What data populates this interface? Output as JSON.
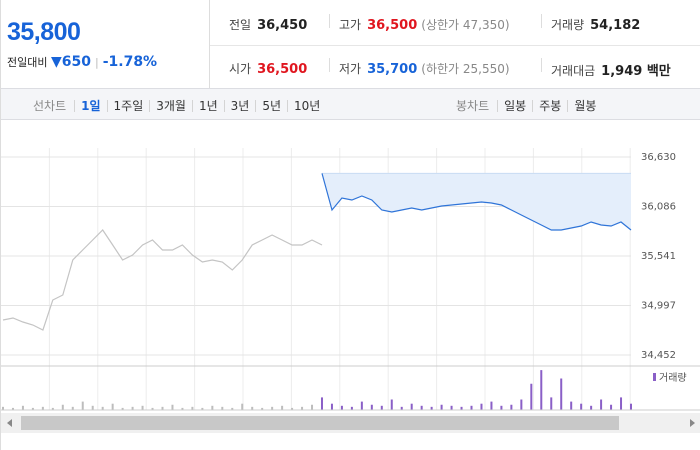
{
  "header": {
    "price": "35,800",
    "change_label": "전일대비",
    "change": "▼650",
    "change_pct": "-1.78%",
    "stats": [
      {
        "label": "전일",
        "value": "36,450",
        "color": "#222222"
      },
      {
        "label": "고가",
        "value": "36,500",
        "note": "(상한가 47,350)",
        "color": "#e0161f"
      },
      {
        "label": "거래량",
        "value": "54,182",
        "color": "#222222"
      },
      {
        "label": "시가",
        "value": "36,500",
        "color": "#e0161f"
      },
      {
        "label": "저가",
        "value": "35,700",
        "note": "(하한가 25,550)",
        "color": "#1763d8"
      },
      {
        "label": "거래대금",
        "value": "1,949 백만",
        "color": "#222222"
      }
    ]
  },
  "line_tabs": {
    "label": "선차트",
    "items": [
      "1일",
      "1주일",
      "3개월",
      "1년",
      "3년",
      "5년",
      "10년"
    ],
    "active": 0
  },
  "candle_tabs": {
    "label": "봉차트",
    "items": [
      "일봉",
      "주봉",
      "월봉"
    ]
  },
  "chart_data": [
    {
      "type": "line",
      "ylim": [
        34452,
        36630
      ],
      "yticks": [
        {
          "value": 36630,
          "label": "36,630"
        },
        {
          "value": 36086,
          "label": "36,086"
        },
        {
          "value": 35541,
          "label": "35,541"
        },
        {
          "value": 34997,
          "label": "34,997"
        },
        {
          "value": 34452,
          "label": "34,452"
        }
      ],
      "grid": true,
      "series": [
        {
          "color": "#c4c4c4",
          "values": [
            34837,
            34859,
            34815,
            34782,
            34727,
            35057,
            35112,
            35497,
            35607,
            35717,
            35827,
            35662,
            35497,
            35552,
            35662,
            35717,
            35607,
            35607,
            35662,
            35552,
            35475,
            35497,
            35475,
            35387,
            35497,
            35662,
            35717,
            35772,
            35717,
            35662,
            35662,
            35717,
            35662,
            null,
            null,
            null,
            null,
            null,
            null,
            null,
            null,
            null,
            null,
            null,
            null,
            null,
            null,
            null,
            null,
            null,
            null,
            null,
            null,
            null,
            null,
            null,
            null,
            null,
            null,
            null,
            null,
            null,
            null,
            null
          ]
        },
        {
          "color": "#2f74d8",
          "fill": "#e4eefb",
          "values": [
            null,
            null,
            null,
            null,
            null,
            null,
            null,
            null,
            null,
            null,
            null,
            null,
            null,
            null,
            null,
            null,
            null,
            null,
            null,
            null,
            null,
            null,
            null,
            null,
            null,
            null,
            null,
            null,
            null,
            null,
            null,
            null,
            36450,
            36047,
            36179,
            36157,
            36201,
            36157,
            36047,
            36025,
            36047,
            36069,
            36047,
            36069,
            36091,
            36102,
            36113,
            36124,
            36135,
            36124,
            36102,
            36047,
            35992,
            35937,
            35882,
            35827,
            35827,
            35849,
            35871,
            35915,
            35882,
            35871,
            35915,
            35827
          ]
        }
      ]
    },
    {
      "type": "bar",
      "ylim": [
        0,
        40
      ],
      "legend": "top-right",
      "series": [
        {
          "color": "#bdbdbd",
          "values": [
            3,
            2,
            4,
            2,
            3,
            2,
            5,
            3,
            8,
            4,
            3,
            6,
            2,
            3,
            4,
            2,
            3,
            5,
            2,
            3,
            2,
            4,
            3,
            2,
            6,
            3,
            2,
            3,
            4,
            2,
            3,
            5,
            null,
            null,
            null,
            null,
            null,
            null,
            null,
            null,
            null,
            null,
            null,
            null,
            null,
            null,
            null,
            null,
            null,
            null,
            null,
            null,
            null,
            null,
            null,
            null,
            null,
            null,
            null,
            null,
            null,
            null,
            null,
            null
          ]
        },
        {
          "name": "거래량",
          "color": "#8a5fc7",
          "values": [
            null,
            null,
            null,
            null,
            null,
            null,
            null,
            null,
            null,
            null,
            null,
            null,
            null,
            null,
            null,
            null,
            null,
            null,
            null,
            null,
            null,
            null,
            null,
            null,
            null,
            null,
            null,
            null,
            null,
            null,
            null,
            null,
            12,
            6,
            4,
            3,
            8,
            5,
            4,
            10,
            3,
            6,
            4,
            3,
            5,
            4,
            3,
            4,
            6,
            8,
            4,
            5,
            10,
            25,
            38,
            12,
            30,
            8,
            6,
            4,
            10,
            5,
            12,
            6
          ]
        }
      ]
    }
  ]
}
